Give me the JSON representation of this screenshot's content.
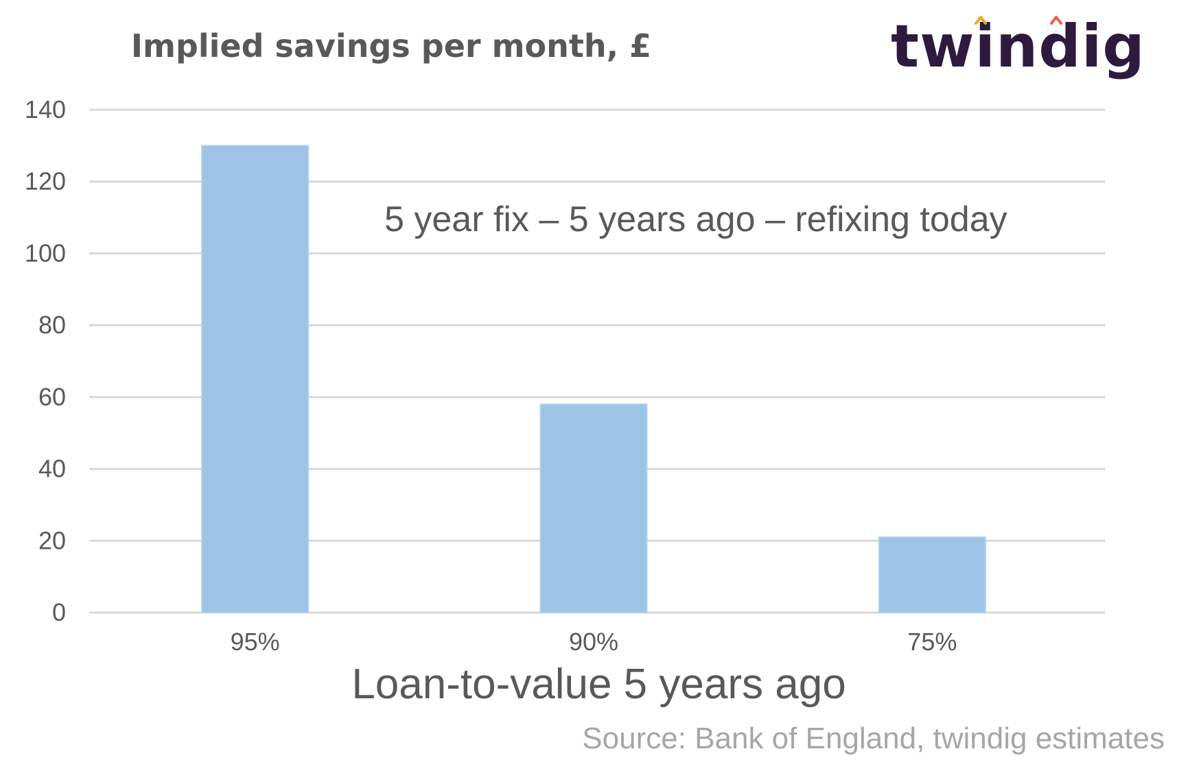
{
  "chart_data": {
    "type": "bar",
    "title": "Implied savings per month, £",
    "categories": [
      "95%",
      "90%",
      "75%"
    ],
    "values": [
      130,
      58,
      21
    ],
    "xlabel": "Loan-to-value 5 years ago",
    "ylabel": "",
    "ylim": [
      0,
      140
    ],
    "yticks": [
      0,
      20,
      40,
      60,
      80,
      100,
      120,
      140
    ],
    "grid": true,
    "legend": "none",
    "annotation": "5 year fix – 5 years ago – refixing today",
    "bar_color": "#9dc3e6"
  },
  "brand": {
    "logo_text": "twindig",
    "accent_colors": [
      "#f5a623",
      "#e8604c"
    ],
    "text_color": "#2e1a3f"
  },
  "source_note": "Source: Bank of England, twindig estimates"
}
